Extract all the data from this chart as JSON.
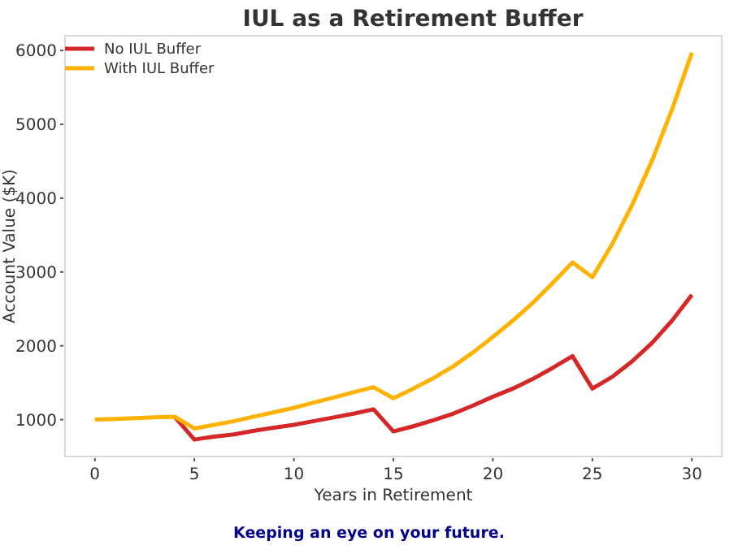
{
  "chart_data": {
    "type": "line",
    "title": "IUL as a Retirement Buffer",
    "xlabel": "Years in Retirement",
    "ylabel": "Account Value ($K)",
    "x": [
      0,
      1,
      2,
      3,
      4,
      5,
      6,
      7,
      8,
      9,
      10,
      11,
      12,
      13,
      14,
      15,
      16,
      17,
      18,
      19,
      20,
      21,
      22,
      23,
      24,
      25,
      26,
      27,
      28,
      29,
      30
    ],
    "series": [
      {
        "name": "No IUL Buffer",
        "color": "#d62728",
        "values": [
          null,
          null,
          null,
          null,
          1040,
          730,
          770,
          800,
          850,
          890,
          930,
          980,
          1030,
          1080,
          1140,
          840,
          910,
          990,
          1080,
          1190,
          1310,
          1420,
          1550,
          1700,
          1860,
          1420,
          1580,
          1790,
          2040,
          2340,
          2690
        ]
      },
      {
        "name": "With IUL Buffer",
        "color": "#ffb300",
        "values": [
          1000,
          1010,
          1020,
          1030,
          1040,
          880,
          930,
          980,
          1040,
          1100,
          1160,
          1230,
          1300,
          1370,
          1440,
          1290,
          1420,
          1560,
          1720,
          1910,
          2120,
          2340,
          2580,
          2850,
          3130,
          2930,
          3380,
          3910,
          4510,
          5200,
          5970
        ]
      }
    ],
    "xlim": [
      -1.5,
      31.5
    ],
    "xticks": [
      0,
      5,
      10,
      15,
      20,
      25,
      30
    ],
    "ylim": [
      500,
      6200
    ],
    "yticks": [
      1000,
      2000,
      3000,
      4000,
      5000,
      6000
    ],
    "legend": "top left",
    "grid": false,
    "marker": "none",
    "line_style": "solid",
    "annotations": [
      "Keeping an eye on your future."
    ]
  }
}
